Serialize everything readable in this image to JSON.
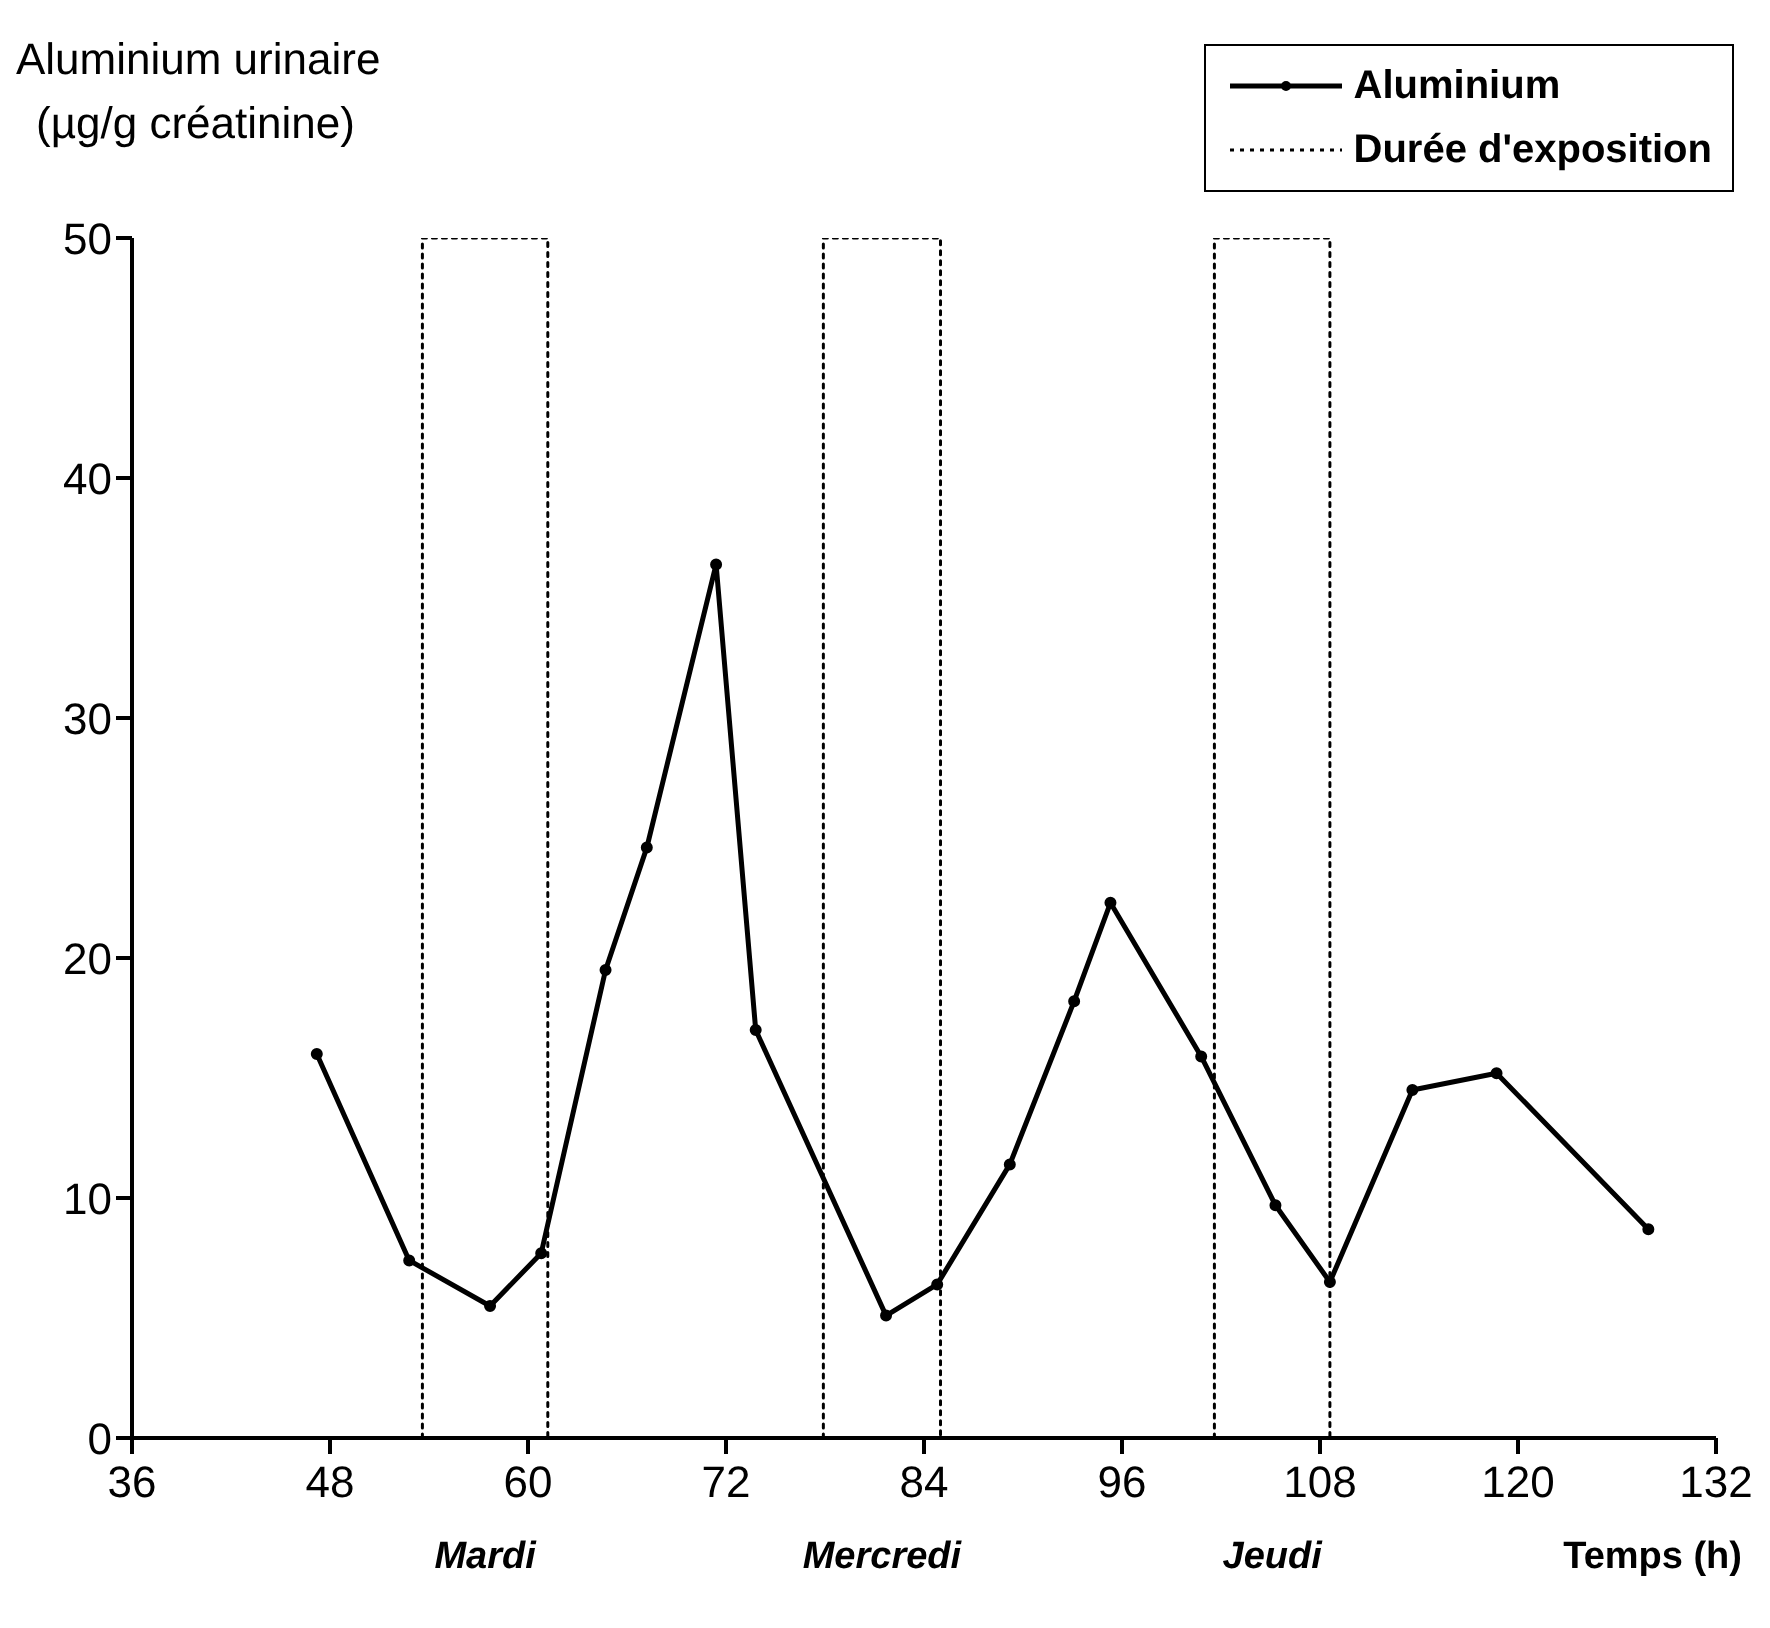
{
  "chart_data": {
    "type": "line",
    "ylabel": "Aluminium urinaire\n(µg/g créatinine)",
    "xlabel": "Temps (h)",
    "xlim": [
      36,
      132
    ],
    "xticks": [
      36,
      48,
      60,
      72,
      84,
      96,
      108,
      120,
      132
    ],
    "ylim": [
      0,
      50
    ],
    "yticks": [
      0,
      10,
      20,
      30,
      40,
      50
    ],
    "legend": "top right",
    "series": [
      {
        "name": "Aluminium",
        "color": "#000000",
        "marker": "circle",
        "line_style": "solid",
        "x": [
          47.2,
          52.8,
          57.7,
          60.8,
          64.7,
          67.2,
          71.4,
          73.8,
          81.7,
          84.8,
          89.2,
          93.1,
          95.3,
          100.8,
          105.3,
          108.6,
          113.6,
          118.7,
          127.9
        ],
        "values": [
          16,
          7.4,
          5.5,
          7.7,
          19.5,
          24.6,
          36.4,
          17,
          5.1,
          6.4,
          11.4,
          18.2,
          22.3,
          15.9,
          9.7,
          6.5,
          14.5,
          15.2,
          8.7
        ]
      },
      {
        "name": "Durée d'exposition",
        "color": "#000000",
        "marker": "none",
        "line_style": "dotted",
        "x": [
          53.6,
          53.6,
          61.2,
          61.2,
          69,
          77.9,
          77.9,
          85,
          85,
          93,
          101.6,
          101.6,
          108.6,
          108.6
        ],
        "values": [
          0,
          50,
          50,
          0,
          null,
          0,
          50,
          50,
          0,
          null,
          0,
          50,
          50,
          0
        ]
      }
    ],
    "annotations": [
      "Mardi",
      "Mercredi",
      "Jeudi"
    ]
  }
}
